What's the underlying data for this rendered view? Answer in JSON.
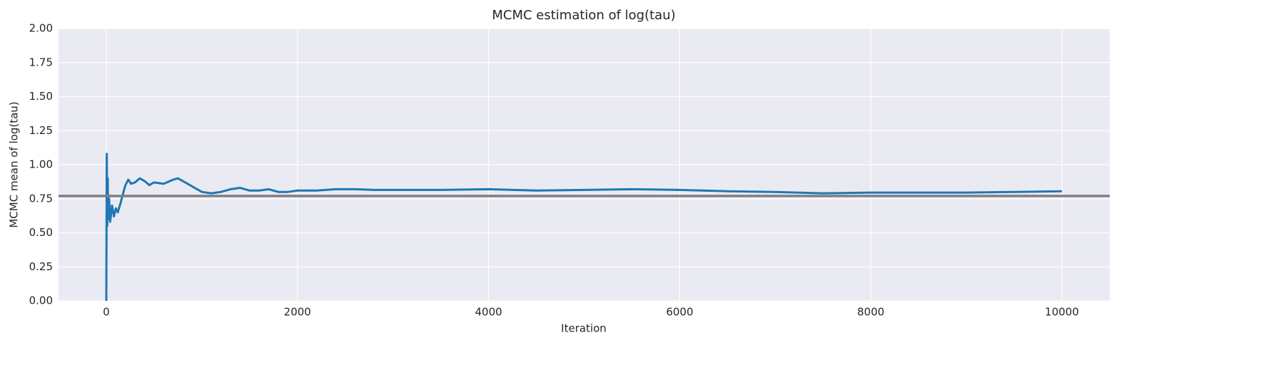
{
  "chart_data": {
    "type": "line",
    "title": "MCMC estimation of log(tau)",
    "xlabel": "Iteration",
    "ylabel": "MCMC mean of log(tau)",
    "x": [
      0,
      5,
      10,
      15,
      20,
      30,
      40,
      60,
      80,
      100,
      120,
      150,
      180,
      200,
      230,
      260,
      300,
      350,
      400,
      450,
      500,
      600,
      700,
      750,
      800,
      850,
      900,
      1000,
      1100,
      1200,
      1300,
      1400,
      1500,
      1600,
      1700,
      1800,
      1900,
      2000,
      2200,
      2400,
      2600,
      2800,
      3000,
      3500,
      4000,
      4500,
      5000,
      5500,
      6000,
      6500,
      7000,
      7500,
      8000,
      8500,
      9000,
      9500,
      10000
    ],
    "values": [
      0.0,
      1.08,
      0.55,
      0.9,
      0.6,
      0.75,
      0.58,
      0.7,
      0.62,
      0.68,
      0.65,
      0.72,
      0.8,
      0.85,
      0.89,
      0.86,
      0.87,
      0.9,
      0.88,
      0.85,
      0.87,
      0.86,
      0.89,
      0.9,
      0.88,
      0.86,
      0.84,
      0.8,
      0.79,
      0.8,
      0.82,
      0.83,
      0.81,
      0.81,
      0.82,
      0.8,
      0.8,
      0.81,
      0.81,
      0.82,
      0.82,
      0.815,
      0.815,
      0.815,
      0.82,
      0.81,
      0.815,
      0.82,
      0.815,
      0.805,
      0.8,
      0.79,
      0.795,
      0.795,
      0.795,
      0.8,
      0.805
    ],
    "color": "#1f77b4",
    "reference_line": {
      "value": 0.77,
      "color": "#808080"
    },
    "xlim": [
      -500,
      10500
    ],
    "xticks": [
      0,
      2000,
      4000,
      6000,
      8000,
      10000
    ],
    "ylim": [
      0,
      2
    ],
    "yticks": [
      {
        "value": 0,
        "label": "0.00"
      },
      {
        "value": 0.25,
        "label": "0.25"
      },
      {
        "value": 0.5,
        "label": "0.50"
      },
      {
        "value": 0.75,
        "label": "0.75"
      },
      {
        "value": 1,
        "label": "1.00"
      },
      {
        "value": 1.25,
        "label": "1.25"
      },
      {
        "value": 1.5,
        "label": "1.50"
      },
      {
        "value": 1.75,
        "label": "1.75"
      },
      {
        "value": 2,
        "label": "2.00"
      }
    ],
    "grid": true
  }
}
